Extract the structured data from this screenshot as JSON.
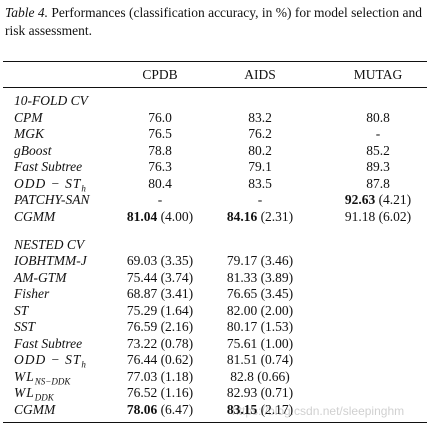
{
  "caption": {
    "label": "Table 4.",
    "text": "Performances (classification accuracy, in %) for model selection and risk assessment."
  },
  "table": {
    "header": [
      "CPDB",
      "AIDS",
      "MUTAG"
    ],
    "sections": [
      {
        "title": "10-FOLD CV",
        "rows": [
          {
            "method": "CPM",
            "cells": [
              "76.0",
              "83.2",
              "80.8"
            ]
          },
          {
            "method": "MGK",
            "cells": [
              "76.5",
              "76.2",
              "-"
            ]
          },
          {
            "method": "gBoost",
            "cells": [
              "78.8",
              "80.2",
              "85.2"
            ]
          },
          {
            "method": "Fast Subtree",
            "cells": [
              "76.3",
              "79.1",
              "89.3"
            ]
          },
          {
            "method": {
              "base": "ODD − ST",
              "sub": "h"
            },
            "cells": [
              "80.4",
              "83.5",
              "87.8"
            ]
          },
          {
            "method": "PATCHY-SAN",
            "cells": [
              "-",
              "-",
              {
                "mean": "92.63",
                "std": "(4.21)",
                "bold": true
              }
            ]
          },
          {
            "method": "CGMM",
            "cells": [
              {
                "mean": "81.04",
                "std": "(4.00)",
                "bold": true
              },
              {
                "mean": "84.16",
                "std": "(2.31)",
                "bold": true
              },
              {
                "mean": "91.18",
                "std": "(6.02)",
                "bold": false
              }
            ]
          }
        ]
      },
      {
        "title": "NESTED CV",
        "rows": [
          {
            "method": "IOBHTMM-J",
            "cells": [
              {
                "mean": "69.03",
                "std": "(3.35)",
                "bold": false
              },
              {
                "mean": "79.17",
                "std": "(3.46)",
                "bold": false
              }
            ]
          },
          {
            "method": "AM-GTM",
            "cells": [
              {
                "mean": "75.44",
                "std": "(3.74)",
                "bold": false
              },
              {
                "mean": "81.33",
                "std": "(3.89)",
                "bold": false
              }
            ]
          },
          {
            "method": "Fisher",
            "cells": [
              {
                "mean": "68.87",
                "std": "(3.41)",
                "bold": false
              },
              {
                "mean": "76.65",
                "std": "(3.45)",
                "bold": false
              }
            ]
          },
          {
            "method": "ST",
            "cells": [
              {
                "mean": "75.29",
                "std": "(1.64)",
                "bold": false
              },
              {
                "mean": "82.00",
                "std": "(2.00)",
                "bold": false
              }
            ]
          },
          {
            "method": "SST",
            "cells": [
              {
                "mean": "76.59",
                "std": "(2.16)",
                "bold": false
              },
              {
                "mean": "80.17",
                "std": "(1.53)",
                "bold": false
              }
            ]
          },
          {
            "method": "Fast Subtree",
            "cells": [
              {
                "mean": "73.22",
                "std": "(0.78)",
                "bold": false
              },
              {
                "mean": "75.61",
                "std": "(1.00)",
                "bold": false
              }
            ]
          },
          {
            "method": {
              "base": "ODD − ST",
              "sub": "h"
            },
            "cells": [
              {
                "mean": "76.44",
                "std": "(0.62)",
                "bold": false
              },
              {
                "mean": "81.51",
                "std": "(0.74)",
                "bold": false
              }
            ]
          },
          {
            "method": {
              "base": "WL",
              "sub": "NS−DDK"
            },
            "cells": [
              {
                "mean": "77.03",
                "std": "(1.18)",
                "bold": false
              },
              {
                "mean": "82.8",
                "std": "(0.66)",
                "bold": false
              }
            ]
          },
          {
            "method": {
              "base": "WL",
              "sub": "DDK"
            },
            "cells": [
              {
                "mean": "76.52",
                "std": "(1.16)",
                "bold": false
              },
              {
                "mean": "82.93",
                "std": "(0.71)",
                "bold": false
              }
            ]
          },
          {
            "method": "CGMM",
            "cells": [
              {
                "mean": "78.06",
                "std": "(6.47)",
                "bold": true
              },
              {
                "mean": "83.15",
                "std": "(2.17)",
                "bold": true
              }
            ]
          }
        ]
      }
    ]
  },
  "watermark": "https://blog.csdn.net/sleepinghm"
}
